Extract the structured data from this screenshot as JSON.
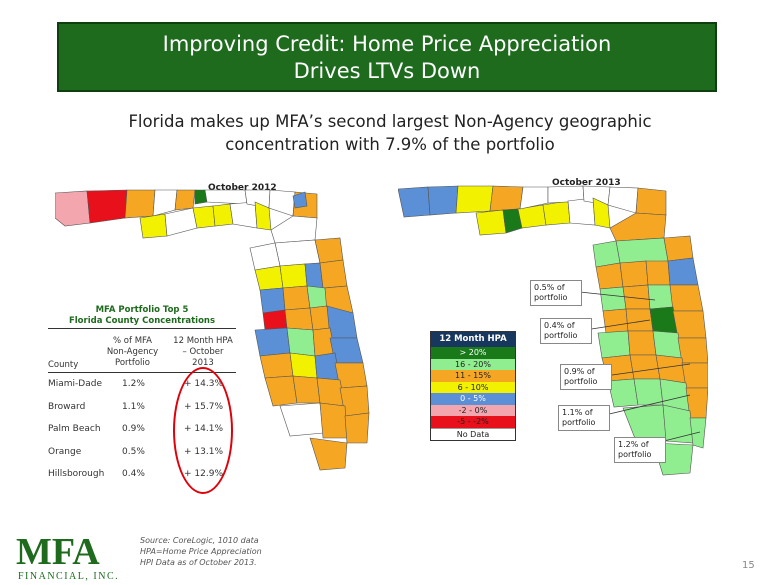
{
  "title": {
    "line1": "Improving Credit: Home Price Appreciation",
    "line2": "Drives LTVs Down"
  },
  "subtitle": {
    "line1": "Florida makes up MFA’s second largest Non-Agency geographic",
    "line2": "concentration with 7.9% of the portfolio"
  },
  "maps": {
    "left_title": "October 2012",
    "right_title": "October 2013"
  },
  "legend": {
    "header": "12 Month HPA",
    "items": [
      {
        "label": "> 20%",
        "color": "#1a7a1a",
        "text_color": "#ffffff"
      },
      {
        "label": "16 - 20%",
        "color": "#90ee90",
        "text_color": "#222222"
      },
      {
        "label": "11 - 15%",
        "color": "#f5a623",
        "text_color": "#222222"
      },
      {
        "label": "6 - 10%",
        "color": "#f2f200",
        "text_color": "#222222"
      },
      {
        "label": "0 - 5%",
        "color": "#5b8fd6",
        "text_color": "#ffffff"
      },
      {
        "label": "-2 - 0%",
        "color": "#f4a6ae",
        "text_color": "#222222"
      },
      {
        "label": "-5 - -2%",
        "color": "#e8101a",
        "text_color": "#222222"
      },
      {
        "label": "No Data",
        "color": "#ffffff",
        "text_color": "#222222"
      }
    ]
  },
  "table": {
    "title_line1": "MFA Portfolio Top 5",
    "title_line2": "Florida County Concentrations",
    "headers": {
      "county": "County",
      "pct_line1": "% of MFA",
      "pct_line2": "Non-Agency",
      "pct_line3": "Portfolio",
      "hpa_line1": "12 Month HPA",
      "hpa_line2": "– October",
      "hpa_line3": "2013"
    },
    "rows": [
      {
        "county": "Miami-Dade",
        "pct": "1.2%",
        "hpa": "+ 14.3%"
      },
      {
        "county": "Broward",
        "pct": "1.1%",
        "hpa": "+ 15.7%"
      },
      {
        "county": "Palm Beach",
        "pct": "0.9%",
        "hpa": "+ 14.1%"
      },
      {
        "county": "Orange",
        "pct": "0.5%",
        "hpa": "+ 13.1%"
      },
      {
        "county": "Hillsborough",
        "pct": "0.4%",
        "hpa": "+ 12.9%"
      }
    ]
  },
  "callouts": [
    {
      "line1": "0.5% of",
      "line2": "portfolio"
    },
    {
      "line1": "0.4% of",
      "line2": "portfolio"
    },
    {
      "line1": "0.9% of",
      "line2": "portfolio"
    },
    {
      "line1": "1.1% of",
      "line2": "portfolio"
    },
    {
      "line1": "1.2% of",
      "line2": "portfolio"
    }
  ],
  "footer": {
    "source_line1": "Source: CoreLogic, 1010 data",
    "source_line2": "HPA=Home Price Appreciation",
    "source_line3": "HPI Data as of October 2013.",
    "page_number": "15",
    "logo_text": "MFA",
    "logo_sub": "FINANCIAL, INC."
  }
}
